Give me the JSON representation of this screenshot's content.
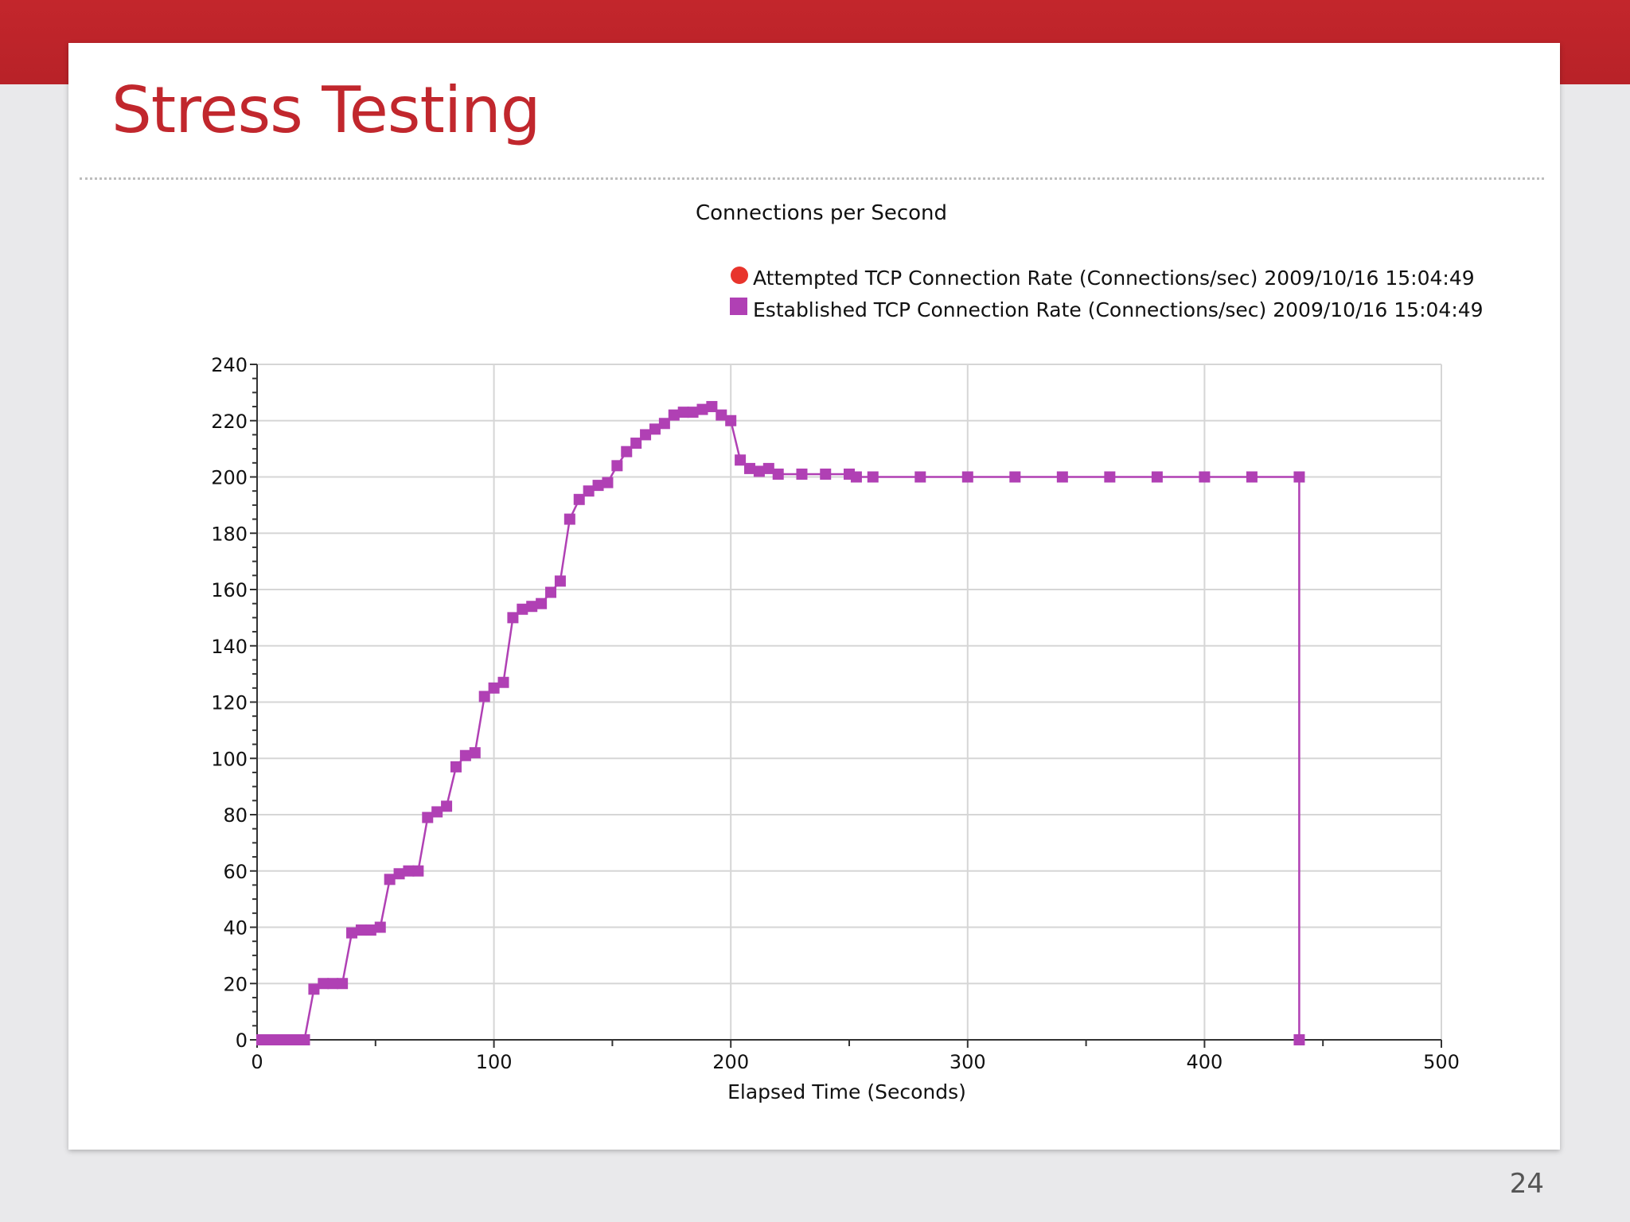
{
  "slide": {
    "title": "Stress Testing",
    "page_number": "24"
  },
  "colors": {
    "band": "#c3262c",
    "title": "#c1272d",
    "attempted": "#e8342c",
    "established": "#b040b4"
  },
  "chart_data": {
    "type": "line",
    "title": "Connections per Second",
    "xlabel": "Elapsed Time (Seconds)",
    "ylabel": "",
    "xlim": [
      0,
      500
    ],
    "ylim": [
      0,
      240
    ],
    "x_ticks": [
      0,
      100,
      200,
      300,
      400,
      500
    ],
    "y_ticks": [
      0,
      20,
      40,
      60,
      80,
      100,
      120,
      140,
      160,
      180,
      200,
      220,
      240
    ],
    "grid": true,
    "legend_position": "top-right",
    "series": [
      {
        "name": "Attempted TCP Connection Rate (Connections/sec) 2009/10/16 15:04:49",
        "marker": "circle",
        "color": "#e8342c",
        "x": [],
        "y": []
      },
      {
        "name": "Established TCP Connection Rate (Connections/sec) 2009/10/16 15:04:49",
        "marker": "square",
        "color": "#b040b4",
        "x": [
          2,
          6,
          10,
          14,
          18,
          20,
          24,
          28,
          32,
          36,
          40,
          44,
          48,
          52,
          56,
          60,
          64,
          68,
          72,
          76,
          80,
          84,
          88,
          92,
          96,
          100,
          104,
          108,
          112,
          116,
          120,
          124,
          128,
          132,
          136,
          140,
          144,
          148,
          152,
          156,
          160,
          164,
          168,
          172,
          176,
          180,
          184,
          188,
          192,
          196,
          200,
          204,
          208,
          212,
          216,
          220,
          230,
          240,
          250,
          253,
          260,
          280,
          300,
          320,
          340,
          360,
          380,
          400,
          420,
          440,
          440
        ],
        "y": [
          0,
          0,
          0,
          0,
          0,
          0,
          18,
          20,
          20,
          20,
          38,
          39,
          39,
          40,
          57,
          59,
          60,
          60,
          79,
          81,
          83,
          97,
          101,
          102,
          122,
          125,
          127,
          150,
          153,
          154,
          155,
          159,
          163,
          185,
          192,
          195,
          197,
          198,
          204,
          209,
          212,
          215,
          217,
          219,
          222,
          223,
          223,
          224,
          225,
          222,
          220,
          206,
          203,
          202,
          203,
          201,
          201,
          201,
          201,
          200,
          200,
          200,
          200,
          200,
          200,
          200,
          200,
          200,
          200,
          200,
          0
        ]
      }
    ]
  }
}
